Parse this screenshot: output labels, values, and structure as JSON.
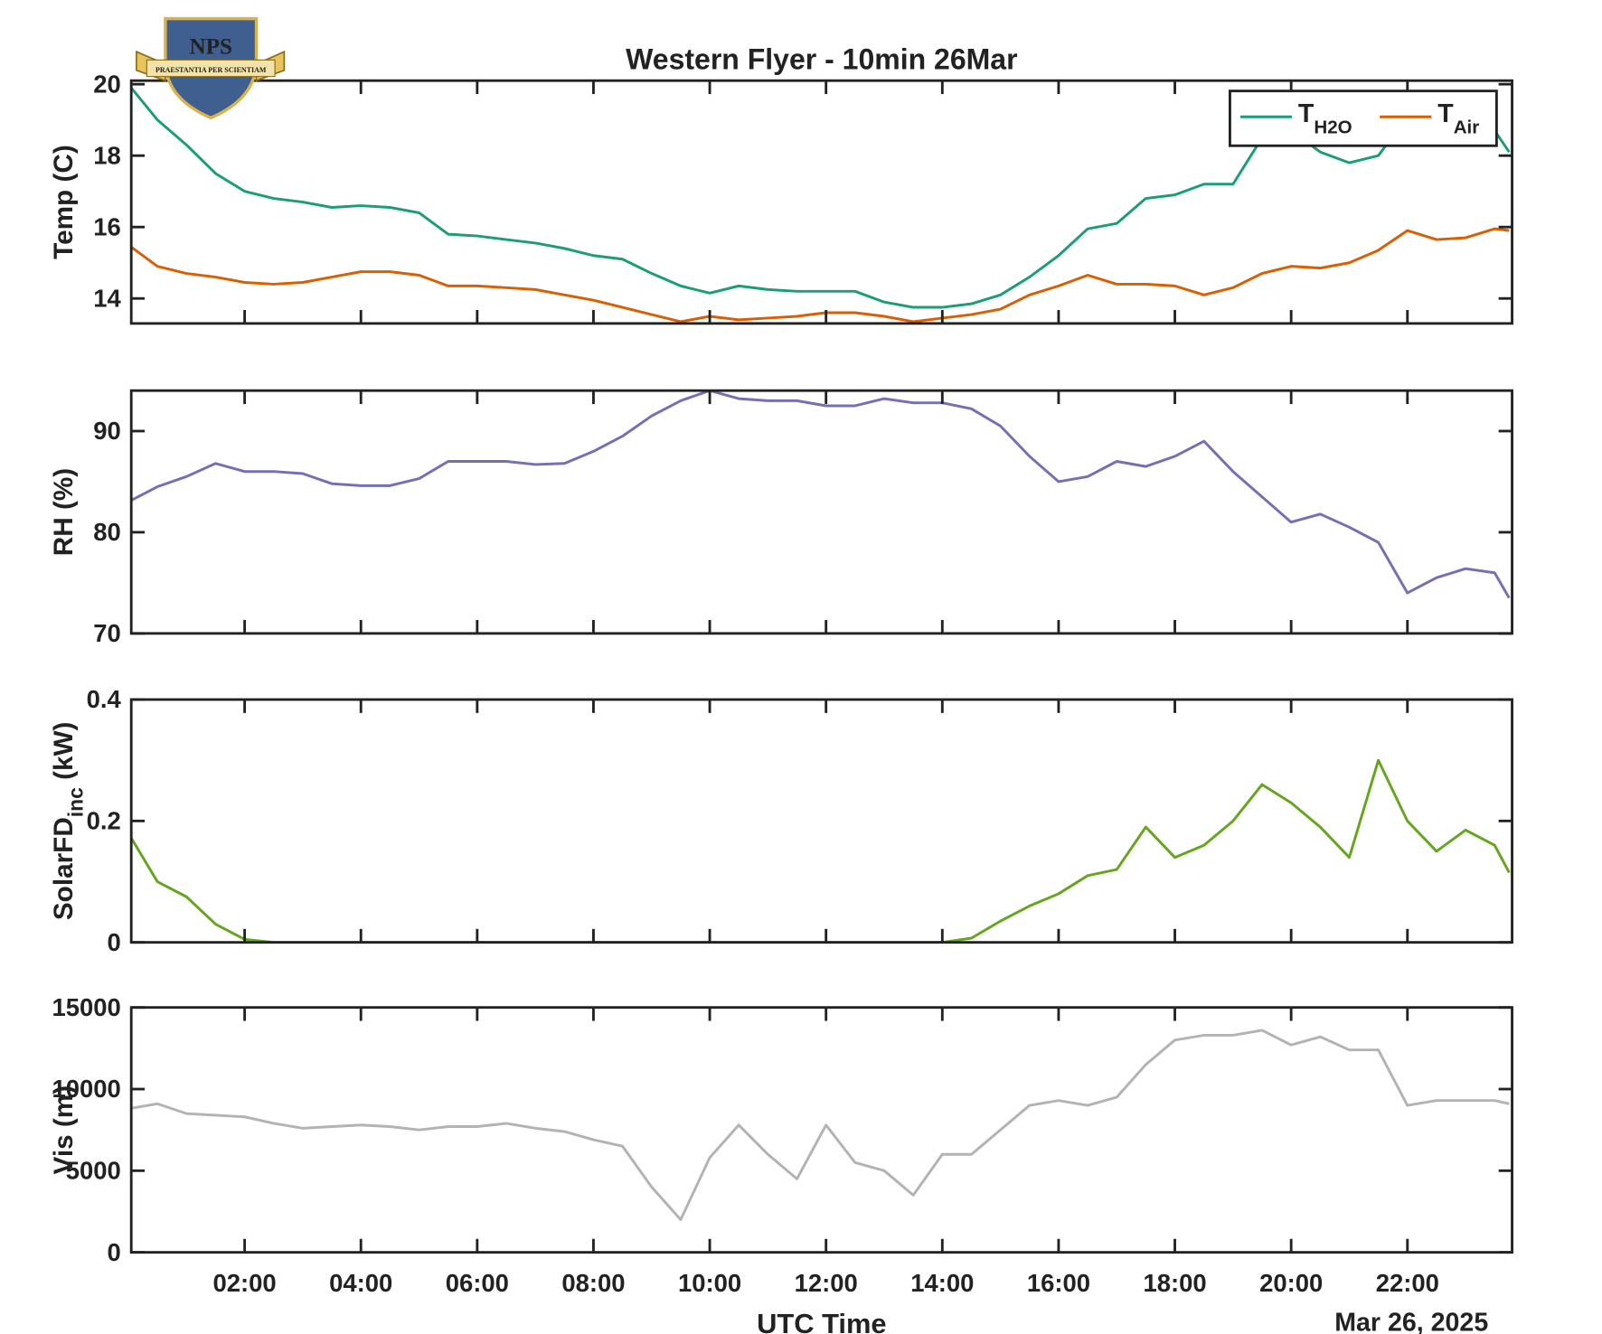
{
  "logo": {
    "title": "NPS",
    "motto": "PRAESTANTIA PER SCIENTIAM"
  },
  "chart_data": [
    {
      "type": "line",
      "title": "Western Flyer - 10min 26Mar",
      "ylabel": "Temp (C)",
      "x": [
        0,
        0.5,
        1,
        1.5,
        2,
        2.5,
        3,
        3.5,
        4,
        4.5,
        5,
        5.5,
        6,
        6.5,
        7,
        7.5,
        8,
        8.5,
        9,
        9.5,
        10,
        10.5,
        11,
        11.5,
        12,
        12.5,
        13,
        13.5,
        14,
        14.5,
        15,
        15.5,
        16,
        16.5,
        17,
        17.5,
        18,
        18.5,
        19,
        19.5,
        20,
        20.5,
        21,
        21.5,
        22,
        22.5,
        23,
        23.5,
        23.75
      ],
      "xlim": [
        0.05,
        23.8
      ],
      "ylim": [
        13.3,
        20.1
      ],
      "yticks": [
        14,
        16,
        18,
        20
      ],
      "legend": "upper right",
      "series": [
        {
          "name": "T",
          "name_sub": "H2O",
          "color": "#1b9e77",
          "values": [
            20.0,
            19.0,
            18.3,
            17.5,
            17.0,
            16.8,
            16.7,
            16.55,
            16.6,
            16.55,
            16.4,
            15.8,
            15.75,
            15.65,
            15.55,
            15.4,
            15.2,
            15.1,
            14.7,
            14.35,
            14.15,
            14.35,
            14.25,
            14.2,
            14.2,
            14.2,
            13.9,
            13.75,
            13.75,
            13.85,
            14.1,
            14.6,
            15.2,
            15.95,
            16.1,
            16.8,
            16.9,
            17.2,
            17.2,
            18.5,
            18.7,
            18.1,
            17.8,
            18.0,
            19.1,
            18.8,
            18.7,
            18.7,
            18.1
          ]
        },
        {
          "name": "T",
          "name_sub": "Air",
          "color": "#d95f02",
          "values": [
            15.5,
            14.9,
            14.7,
            14.6,
            14.45,
            14.4,
            14.45,
            14.6,
            14.75,
            14.75,
            14.65,
            14.35,
            14.35,
            14.3,
            14.25,
            14.1,
            13.95,
            13.75,
            13.55,
            13.35,
            13.5,
            13.4,
            13.45,
            13.5,
            13.6,
            13.6,
            13.5,
            13.35,
            13.45,
            13.55,
            13.7,
            14.1,
            14.35,
            14.65,
            14.4,
            14.4,
            14.35,
            14.1,
            14.3,
            14.7,
            14.9,
            14.85,
            15.0,
            15.35,
            15.9,
            15.65,
            15.7,
            15.95,
            15.9
          ]
        }
      ]
    },
    {
      "type": "line",
      "ylabel": "RH (%)",
      "x": [
        0,
        0.5,
        1,
        1.5,
        2,
        2.5,
        3,
        3.5,
        4,
        4.5,
        5,
        5.5,
        6,
        6.5,
        7,
        7.5,
        8,
        8.5,
        9,
        9.5,
        10,
        10.5,
        11,
        11.5,
        12,
        12.5,
        13,
        13.5,
        14,
        14.5,
        15,
        15.5,
        16,
        16.5,
        17,
        17.5,
        18,
        18.5,
        19,
        19.5,
        20,
        20.5,
        21,
        21.5,
        22,
        22.5,
        23,
        23.5,
        23.75
      ],
      "xlim": [
        0.05,
        23.8
      ],
      "ylim": [
        70,
        94
      ],
      "yticks": [
        70,
        80,
        90
      ],
      "series": [
        {
          "color": "#7570b3",
          "values": [
            83,
            84.5,
            85.5,
            86.8,
            86,
            86,
            85.8,
            84.8,
            84.6,
            84.6,
            85.3,
            87,
            87,
            87,
            86.7,
            86.8,
            88,
            89.5,
            91.5,
            93,
            94,
            93.2,
            93,
            93,
            92.5,
            92.5,
            93.2,
            92.8,
            92.8,
            92.2,
            90.5,
            87.5,
            85,
            85.5,
            87,
            86.5,
            87.5,
            89,
            86,
            83.5,
            81,
            81.8,
            80.5,
            79,
            74,
            75.5,
            76.4,
            76,
            73.5
          ]
        }
      ]
    },
    {
      "type": "line",
      "ylabel": "SolarFD",
      "ylabel_sub": "inc",
      "ylabel_unit": " (kW)",
      "x": [
        0,
        0.5,
        1,
        1.5,
        2,
        2.5,
        3,
        3.5,
        4,
        4.5,
        5,
        5.5,
        6,
        6.5,
        7,
        7.5,
        8,
        8.5,
        9,
        9.5,
        10,
        10.5,
        11,
        11.5,
        12,
        12.5,
        13,
        13.5,
        14,
        14.5,
        15,
        15.5,
        16,
        16.5,
        17,
        17.5,
        18,
        18.5,
        19,
        19.5,
        20,
        20.5,
        21,
        21.5,
        22,
        22.5,
        23,
        23.5,
        23.75
      ],
      "xlim": [
        0.05,
        23.8
      ],
      "ylim": [
        0,
        0.4
      ],
      "yticks": [
        0,
        0.2,
        0.4
      ],
      "series": [
        {
          "color": "#66a61e",
          "values": [
            0.18,
            0.1,
            0.075,
            0.03,
            0.005,
            0,
            0,
            0,
            0,
            0,
            0,
            0,
            0,
            0,
            0,
            0,
            0,
            0,
            0,
            0,
            0,
            0,
            0,
            0,
            0,
            0,
            0,
            0,
            0,
            0.007,
            0.035,
            0.06,
            0.08,
            0.11,
            0.12,
            0.19,
            0.14,
            0.16,
            0.2,
            0.26,
            0.23,
            0.19,
            0.14,
            0.3,
            0.2,
            0.15,
            0.185,
            0.16,
            0.115
          ]
        }
      ]
    },
    {
      "type": "line",
      "ylabel": "Vis (m)",
      "xlabel": "UTC Time",
      "date_label": "Mar 26, 2025",
      "x": [
        0,
        0.5,
        1,
        1.5,
        2,
        2.5,
        3,
        3.5,
        4,
        4.5,
        5,
        5.5,
        6,
        6.5,
        7,
        7.5,
        8,
        8.5,
        9,
        9.5,
        10,
        10.5,
        11,
        11.5,
        12,
        12.5,
        13,
        13.5,
        14,
        14.5,
        15,
        15.5,
        16,
        16.5,
        17,
        17.5,
        18,
        18.5,
        19,
        19.5,
        20,
        20.5,
        21,
        21.5,
        22,
        22.5,
        23,
        23.5,
        23.75
      ],
      "xlim": [
        0.05,
        23.8
      ],
      "ylim": [
        0,
        15000
      ],
      "yticks": [
        0,
        5000,
        10000,
        15000
      ],
      "xticks": [
        {
          "value": 2,
          "label": "02:00"
        },
        {
          "value": 4,
          "label": "04:00"
        },
        {
          "value": 6,
          "label": "06:00"
        },
        {
          "value": 8,
          "label": "08:00"
        },
        {
          "value": 10,
          "label": "10:00"
        },
        {
          "value": 12,
          "label": "12:00"
        },
        {
          "value": 14,
          "label": "14:00"
        },
        {
          "value": 16,
          "label": "16:00"
        },
        {
          "value": 18,
          "label": "18:00"
        },
        {
          "value": 20,
          "label": "20:00"
        },
        {
          "value": 22,
          "label": "22:00"
        }
      ],
      "series": [
        {
          "color": "#b3b3b3",
          "values": [
            8800,
            9100,
            8500,
            8400,
            8300,
            7900,
            7600,
            7700,
            7800,
            7700,
            7500,
            7700,
            7700,
            7900,
            7600,
            7400,
            6900,
            6500,
            4000,
            2000,
            5800,
            7800,
            6000,
            4500,
            7800,
            5500,
            5000,
            3500,
            6000,
            6000,
            7500,
            9000,
            9300,
            9000,
            9500,
            11500,
            13000,
            13300,
            13300,
            13600,
            12700,
            13200,
            12400,
            12400,
            9000,
            9300,
            9300,
            9300,
            9100
          ]
        }
      ]
    }
  ]
}
